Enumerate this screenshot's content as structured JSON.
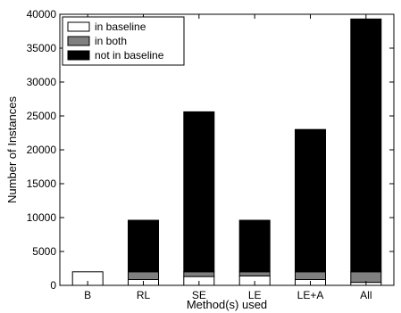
{
  "chart_data": {
    "type": "bar",
    "stacked": true,
    "categories": [
      "B",
      "RL",
      "SE",
      "LE",
      "LE+A",
      "All"
    ],
    "series": [
      {
        "name": "in baseline",
        "color": "#ffffff",
        "values": [
          2000,
          850,
          1300,
          1400,
          850,
          450
        ]
      },
      {
        "name": "in both",
        "color": "#808080",
        "values": [
          0,
          1150,
          700,
          600,
          1150,
          1550
        ]
      },
      {
        "name": "not in baseline",
        "color": "#000000",
        "values": [
          0,
          7600,
          23600,
          7600,
          21000,
          37300
        ]
      }
    ],
    "xlabel": "Method(s) used",
    "ylabel": "Number of Instances",
    "ylim": [
      0,
      40000
    ],
    "yticks": [
      0,
      5000,
      10000,
      15000,
      20000,
      25000,
      30000,
      35000,
      40000
    ],
    "legend_position": "top-left",
    "grid": false
  }
}
